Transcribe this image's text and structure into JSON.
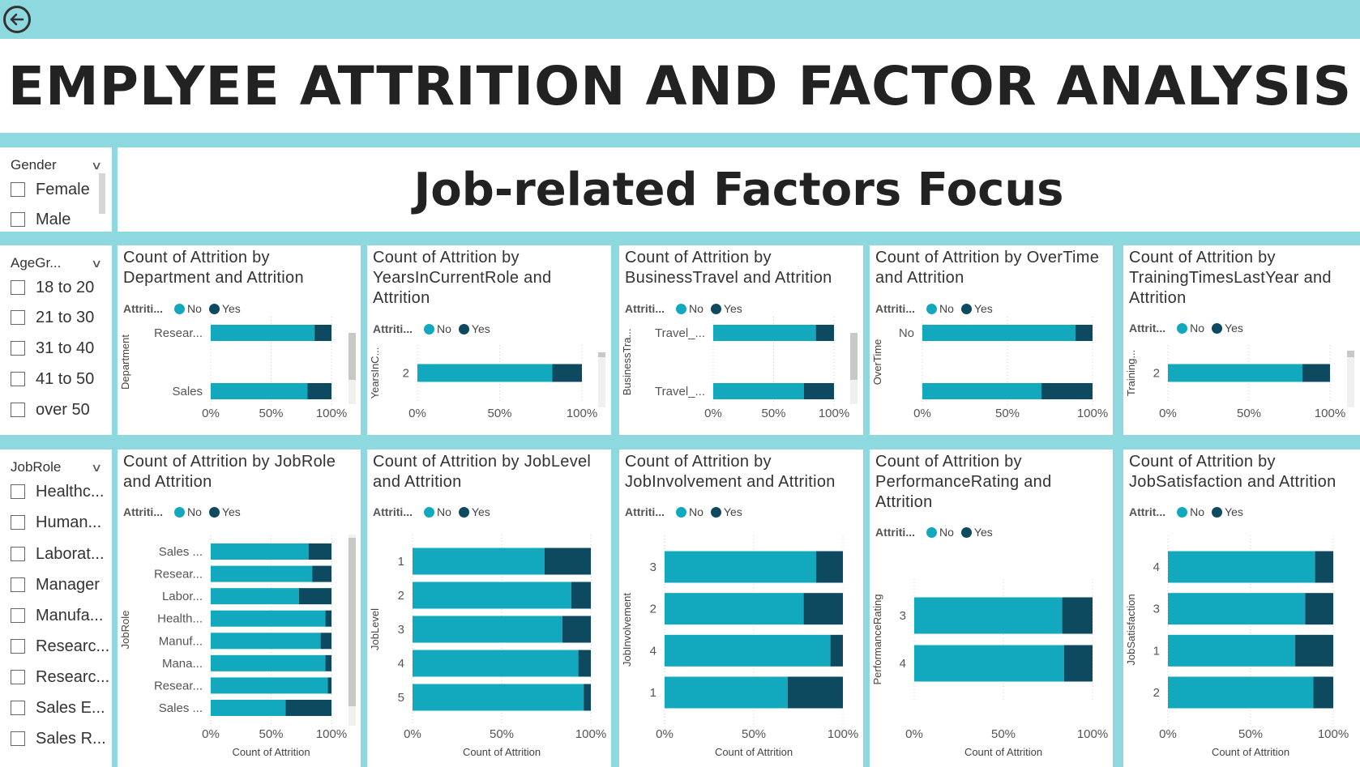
{
  "header": {
    "title": "EMPLYEE ATTRITION AND FACTOR ANALYSIS",
    "subtitle": "Job-related Factors Focus"
  },
  "colors": {
    "no": "#12a8be",
    "yes": "#0d4a60",
    "accent": "#8ed8e0"
  },
  "slicers": {
    "gender": {
      "title": "Gender",
      "items": [
        "Female",
        "Male"
      ]
    },
    "age": {
      "title": "AgeGr...",
      "items": [
        "18 to 20",
        "21 to 30",
        "31 to 40",
        "41 to 50",
        "over 50"
      ]
    },
    "jobrole": {
      "title": "JobRole",
      "items": [
        "Healthc...",
        "Human...",
        "Laborat...",
        "Manager",
        "Manufa...",
        "Researc...",
        "Researc...",
        "Sales E...",
        "Sales R..."
      ]
    }
  },
  "legend": {
    "title": "Attriti...",
    "title_short": "Attrit...",
    "no": "No",
    "yes": "Yes"
  },
  "chart_data": [
    {
      "id": "dept",
      "type": "bar",
      "stacked": "100%",
      "title": "Count of Attrition by Department and Attrition",
      "ylabel": "Department",
      "xlabel": "",
      "categories": [
        "Resear...",
        "Sales"
      ],
      "series": [
        {
          "name": "No",
          "values": [
            86,
            80
          ]
        },
        {
          "name": "Yes",
          "values": [
            14,
            20
          ]
        }
      ],
      "xticks": [
        "0%",
        "50%",
        "100%"
      ]
    },
    {
      "id": "years",
      "type": "bar",
      "stacked": "100%",
      "title": "Count of Attrition by YearsInCurrentRole and Attrition",
      "ylabel": "YearsInC...",
      "xlabel": "",
      "categories": [
        "2"
      ],
      "series": [
        {
          "name": "No",
          "values": [
            82
          ]
        },
        {
          "name": "Yes",
          "values": [
            18
          ]
        }
      ],
      "xticks": [
        "0%",
        "50%",
        "100%"
      ]
    },
    {
      "id": "travel",
      "type": "bar",
      "stacked": "100%",
      "title": "Count of Attrition by BusinessTravel and Attrition",
      "ylabel": "BusinessTra...",
      "xlabel": "",
      "categories": [
        "Travel_...",
        "Travel_..."
      ],
      "series": [
        {
          "name": "No",
          "values": [
            85,
            75
          ]
        },
        {
          "name": "Yes",
          "values": [
            15,
            25
          ]
        }
      ],
      "xticks": [
        "0%",
        "50%",
        "100%"
      ]
    },
    {
      "id": "overtime",
      "type": "bar",
      "stacked": "100%",
      "title": "Count of Attrition by OverTime and Attrition",
      "ylabel": "OverTime",
      "xlabel": "",
      "categories": [
        "No",
        ""
      ],
      "series": [
        {
          "name": "No",
          "values": [
            90,
            70
          ]
        },
        {
          "name": "Yes",
          "values": [
            10,
            30
          ]
        }
      ],
      "xticks": [
        "0%",
        "50%",
        "100%"
      ]
    },
    {
      "id": "training",
      "type": "bar",
      "stacked": "100%",
      "title": "Count of Attrition by TrainingTimesLastYear and Attrition",
      "ylabel": "Training...",
      "xlabel": "",
      "categories": [
        "2"
      ],
      "series": [
        {
          "name": "No",
          "values": [
            83
          ]
        },
        {
          "name": "Yes",
          "values": [
            17
          ]
        }
      ],
      "xticks": [
        "0%",
        "50%",
        "100%"
      ]
    },
    {
      "id": "jobrole",
      "type": "bar",
      "stacked": "100%",
      "title": "Count of Attrition by JobRole and Attrition",
      "ylabel": "JobRole",
      "xlabel": "Count of Attrition",
      "categories": [
        "Sales ...",
        "Resear...",
        "Labor...",
        "Health...",
        "Manuf...",
        "Mana...",
        "Resear...",
        "Sales ..."
      ],
      "series": [
        {
          "name": "No",
          "values": [
            81,
            84,
            73,
            95,
            91,
            95,
            97,
            62
          ]
        },
        {
          "name": "Yes",
          "values": [
            19,
            16,
            27,
            5,
            9,
            5,
            3,
            38
          ]
        }
      ],
      "xticks": [
        "0%",
        "50%",
        "100%"
      ]
    },
    {
      "id": "joblevel",
      "type": "bar",
      "stacked": "100%",
      "title": "Count of Attrition by JobLevel and Attrition",
      "ylabel": "JobLevel",
      "xlabel": "Count of Attrition",
      "categories": [
        "1",
        "2",
        "3",
        "4",
        "5"
      ],
      "series": [
        {
          "name": "No",
          "values": [
            74,
            89,
            84,
            93,
            96
          ]
        },
        {
          "name": "Yes",
          "values": [
            26,
            11,
            16,
            7,
            4
          ]
        }
      ],
      "xticks": [
        "0%",
        "50%",
        "100%"
      ]
    },
    {
      "id": "involvement",
      "type": "bar",
      "stacked": "100%",
      "title": "Count of Attrition by JobInvolvement and Attrition",
      "ylabel": "JobInvolvement",
      "xlabel": "Count of Attrition",
      "categories": [
        "3",
        "2",
        "4",
        "1"
      ],
      "series": [
        {
          "name": "No",
          "values": [
            85,
            78,
            93,
            69
          ]
        },
        {
          "name": "Yes",
          "values": [
            15,
            22,
            7,
            31
          ]
        }
      ],
      "xticks": [
        "0%",
        "50%",
        "100%"
      ]
    },
    {
      "id": "performance",
      "type": "bar",
      "stacked": "100%",
      "title": "Count of Attrition by PerformanceRating and Attrition",
      "ylabel": "PerformanceRating",
      "xlabel": "Count of Attrition",
      "categories": [
        "3",
        "4"
      ],
      "series": [
        {
          "name": "No",
          "values": [
            83,
            84
          ]
        },
        {
          "name": "Yes",
          "values": [
            17,
            16
          ]
        }
      ],
      "xticks": [
        "0%",
        "50%",
        "100%"
      ]
    },
    {
      "id": "satisfaction",
      "type": "bar",
      "stacked": "100%",
      "title": "Count of Attrition by JobSatisfaction and Attrition",
      "ylabel": "JobSatisfaction",
      "xlabel": "Count of Attrition",
      "categories": [
        "4",
        "3",
        "1",
        "2"
      ],
      "series": [
        {
          "name": "No",
          "values": [
            89,
            83,
            77,
            88
          ]
        },
        {
          "name": "Yes",
          "values": [
            11,
            17,
            23,
            12
          ]
        }
      ],
      "xticks": [
        "0%",
        "50%",
        "100%"
      ]
    }
  ]
}
